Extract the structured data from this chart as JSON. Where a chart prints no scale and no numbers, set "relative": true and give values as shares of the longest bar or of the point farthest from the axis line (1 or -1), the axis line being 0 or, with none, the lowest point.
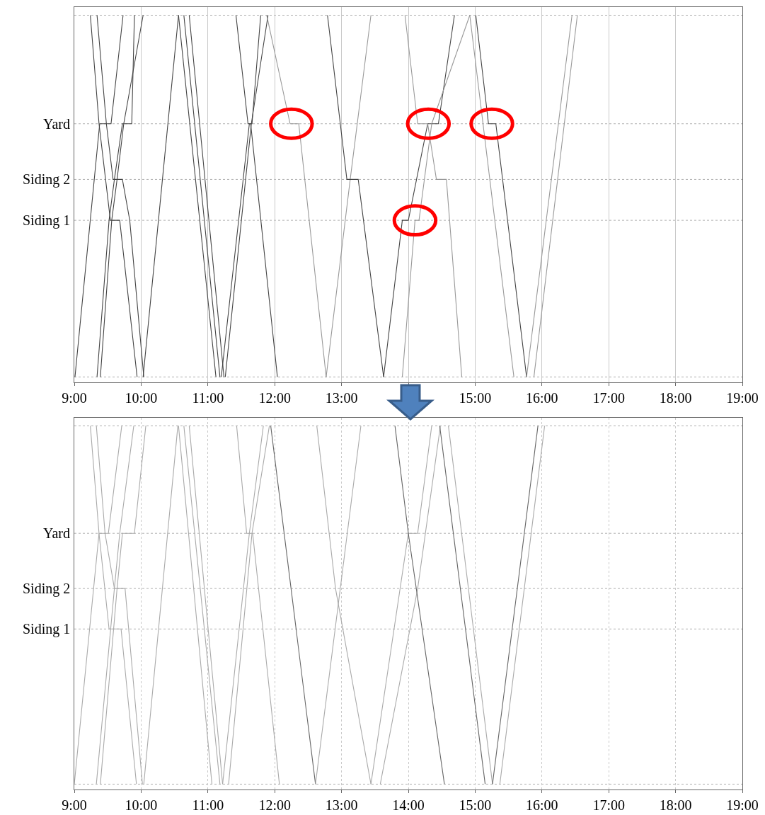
{
  "chart_data": [
    {
      "type": "line",
      "xlim": [
        9,
        19
      ],
      "relative": true,
      "xticks": [
        {
          "value": 9,
          "label": "9:00"
        },
        {
          "value": 10,
          "label": "10:00"
        },
        {
          "value": 11,
          "label": "11:00"
        },
        {
          "value": 12,
          "label": "12:00"
        },
        {
          "value": 13,
          "label": "13:00"
        },
        {
          "value": 14,
          "label": null
        },
        {
          "value": 15,
          "label": "15:00"
        },
        {
          "value": 16,
          "label": "16:00"
        },
        {
          "value": 17,
          "label": "17:00"
        },
        {
          "value": 18,
          "label": "18:00"
        },
        {
          "value": 19,
          "label": "19:00"
        }
      ],
      "ref_lines": [
        {
          "axis": "y",
          "value": 0
        },
        {
          "axis": "y",
          "value": 0.433,
          "label": "Siding 1"
        },
        {
          "axis": "y",
          "value": 0.546,
          "label": "Siding 2"
        },
        {
          "axis": "y",
          "value": 0.7,
          "label": "Yard"
        },
        {
          "axis": "y",
          "value": 1
        }
      ],
      "grid": "x",
      "marker": "none",
      "line_style": "solid",
      "series": [
        {
          "color": "#444444",
          "x": [
            9.01,
            9.38,
            9.55,
            9.73
          ],
          "values": [
            0,
            0.7,
            0.7,
            1
          ]
        },
        {
          "color": "#444444",
          "x": [
            9.34,
            9.52,
            9.6,
            9.72,
            9.86,
            9.9
          ],
          "values": [
            0,
            0.433,
            0.546,
            0.7,
            0.7,
            1
          ]
        },
        {
          "color": "#444444",
          "x": [
            9.39,
            9.56,
            9.64,
            9.74,
            10.03
          ],
          "values": [
            0,
            0.433,
            0.546,
            0.7,
            1
          ]
        },
        {
          "color": "#444444",
          "x": [
            9.24,
            9.37,
            9.54,
            9.68,
            9.94
          ],
          "values": [
            1,
            0.7,
            0.433,
            0.433,
            0
          ]
        },
        {
          "color": "#444444",
          "x": [
            9.34,
            9.48,
            9.58,
            9.72,
            9.83,
            10.04
          ],
          "values": [
            1,
            0.7,
            0.546,
            0.546,
            0.433,
            0
          ]
        },
        {
          "color": "#444444",
          "x": [
            10.03,
            10.56
          ],
          "values": [
            0,
            1
          ]
        },
        {
          "color": "#444444",
          "x": [
            10.56,
            11.12
          ],
          "values": [
            1,
            0
          ]
        },
        {
          "color": "#444444",
          "x": [
            10.64,
            11.18
          ],
          "values": [
            1,
            0
          ]
        },
        {
          "color": "#444444",
          "x": [
            10.72,
            11.24
          ],
          "values": [
            1,
            0
          ]
        },
        {
          "color": "#444444",
          "x": [
            11.2,
            11.62,
            11.66,
            11.79
          ],
          "values": [
            0,
            0.7,
            0.7,
            1
          ]
        },
        {
          "color": "#444444",
          "x": [
            11.26,
            11.65,
            11.9
          ],
          "values": [
            0,
            0.7,
            1
          ]
        },
        {
          "color": "#444444",
          "x": [
            11.42,
            11.6,
            11.64,
            12.04
          ],
          "values": [
            1,
            0.7,
            0.7,
            0
          ]
        },
        {
          "color": "#999999",
          "x": [
            11.88,
            12.23,
            12.36,
            12.77
          ],
          "values": [
            1,
            0.7,
            0.7,
            0
          ]
        },
        {
          "color": "#999999",
          "x": [
            12.77,
            13.13,
            13.44
          ],
          "values": [
            0,
            0.546,
            1
          ]
        },
        {
          "color": "#444444",
          "x": [
            12.79,
            13.08,
            13.25,
            13.63
          ],
          "values": [
            1,
            0.546,
            0.546,
            0
          ]
        },
        {
          "color": "#444444",
          "x": [
            13.63,
            13.91,
            14.0,
            14.29,
            14.45,
            14.69
          ],
          "values": [
            0,
            0.433,
            0.433,
            0.7,
            0.7,
            1
          ]
        },
        {
          "color": "#999999",
          "x": [
            13.91,
            14.1,
            14.16,
            14.35,
            14.92
          ],
          "values": [
            0,
            0.433,
            0.433,
            0.7,
            1
          ]
        },
        {
          "color": "#999999",
          "x": [
            13.95,
            14.14,
            14.29,
            14.42,
            14.57,
            14.8
          ],
          "values": [
            1,
            0.7,
            0.7,
            0.546,
            0.546,
            0
          ]
        },
        {
          "color": "#444444",
          "x": [
            15.01,
            15.2,
            15.31,
            15.77
          ],
          "values": [
            1,
            0.7,
            0.7,
            0
          ]
        },
        {
          "color": "#999999",
          "x": [
            14.92,
            15.58
          ],
          "values": [
            1,
            0
          ]
        },
        {
          "color": "#999999",
          "x": [
            15.77,
            16.45
          ],
          "values": [
            0,
            1
          ]
        },
        {
          "color": "#999999",
          "x": [
            15.88,
            16.53
          ],
          "values": [
            0,
            1
          ]
        }
      ]
    },
    {
      "type": "line",
      "xlim": [
        9,
        19
      ],
      "relative": true,
      "xticks": [
        {
          "value": 9,
          "label": "9:00"
        },
        {
          "value": 10,
          "label": "10:00"
        },
        {
          "value": 11,
          "label": "11:00"
        },
        {
          "value": 12,
          "label": "12:00"
        },
        {
          "value": 13,
          "label": "13:00"
        },
        {
          "value": 14,
          "label": "14:00"
        },
        {
          "value": 15,
          "label": "15:00"
        },
        {
          "value": 16,
          "label": "16:00"
        },
        {
          "value": 17,
          "label": "17:00"
        },
        {
          "value": 18,
          "label": "18:00"
        },
        {
          "value": 19,
          "label": "19:00"
        }
      ],
      "ref_lines": [
        {
          "axis": "y",
          "value": 0
        },
        {
          "axis": "y",
          "value": 0.433,
          "label": "Siding 1"
        },
        {
          "axis": "y",
          "value": 0.546,
          "label": "Siding 2"
        },
        {
          "axis": "y",
          "value": 0.7,
          "label": "Yard"
        },
        {
          "axis": "y",
          "value": 1
        }
      ],
      "grid": "x",
      "marker": "none",
      "line_style": "solid",
      "series": [
        {
          "color": "#aaaaaa",
          "x": [
            9.0,
            9.37,
            9.51,
            9.71
          ],
          "values": [
            0,
            0.7,
            0.7,
            1
          ]
        },
        {
          "color": "#aaaaaa",
          "x": [
            9.33,
            9.6,
            9.68,
            9.89
          ],
          "values": [
            0,
            0.546,
            0.7,
            1
          ]
        },
        {
          "color": "#aaaaaa",
          "x": [
            9.39,
            9.64,
            9.72,
            9.9,
            10.07
          ],
          "values": [
            0,
            0.546,
            0.7,
            0.7,
            1
          ]
        },
        {
          "color": "#aaaaaa",
          "x": [
            9.24,
            9.37,
            9.52,
            9.7,
            9.93
          ],
          "values": [
            1,
            0.7,
            0.433,
            0.433,
            0
          ]
        },
        {
          "color": "#aaaaaa",
          "x": [
            9.33,
            9.46,
            9.6,
            9.76,
            10.02
          ],
          "values": [
            1,
            0.7,
            0.546,
            0.546,
            0
          ]
        },
        {
          "color": "#aaaaaa",
          "x": [
            10.04,
            10.55
          ],
          "values": [
            0,
            1
          ]
        },
        {
          "color": "#aaaaaa",
          "x": [
            10.56,
            11.06
          ],
          "values": [
            1,
            0
          ]
        },
        {
          "color": "#aaaaaa",
          "x": [
            10.64,
            11.18
          ],
          "values": [
            1,
            0
          ]
        },
        {
          "color": "#aaaaaa",
          "x": [
            10.72,
            11.22
          ],
          "values": [
            1,
            0
          ]
        },
        {
          "color": "#aaaaaa",
          "x": [
            11.22,
            11.62,
            11.83
          ],
          "values": [
            0,
            0.7,
            1
          ]
        },
        {
          "color": "#aaaaaa",
          "x": [
            11.31,
            11.66,
            11.92
          ],
          "values": [
            0,
            0.7,
            1
          ]
        },
        {
          "color": "#aaaaaa",
          "x": [
            11.43,
            11.58,
            11.67,
            12.07
          ],
          "values": [
            1,
            0.7,
            0.7,
            0
          ]
        },
        {
          "color": "#666666",
          "x": [
            11.94,
            12.61
          ],
          "values": [
            1,
            0
          ]
        },
        {
          "color": "#aaaaaa",
          "x": [
            12.61,
            13.29
          ],
          "values": [
            0,
            1
          ]
        },
        {
          "color": "#aaaaaa",
          "x": [
            12.63,
            12.91,
            13.44
          ],
          "values": [
            1,
            0.546,
            0
          ]
        },
        {
          "color": "#aaaaaa",
          "x": [
            13.44,
            14.0,
            14.14,
            14.35
          ],
          "values": [
            0,
            0.7,
            0.7,
            1
          ]
        },
        {
          "color": "#aaaaaa",
          "x": [
            13.58,
            14.14,
            14.48
          ],
          "values": [
            0,
            0.546,
            1
          ]
        },
        {
          "color": "#666666",
          "x": [
            13.8,
            14.0,
            14.54
          ],
          "values": [
            1,
            0.7,
            0
          ]
        },
        {
          "color": "#666666",
          "x": [
            14.47,
            15.15
          ],
          "values": [
            1,
            0
          ]
        },
        {
          "color": "#aaaaaa",
          "x": [
            14.6,
            15.26
          ],
          "values": [
            1,
            0
          ]
        },
        {
          "color": "#666666",
          "x": [
            15.26,
            15.94
          ],
          "values": [
            0,
            1
          ]
        },
        {
          "color": "#aaaaaa",
          "x": [
            15.37,
            16.04
          ],
          "values": [
            0,
            1
          ]
        }
      ]
    }
  ]
}
